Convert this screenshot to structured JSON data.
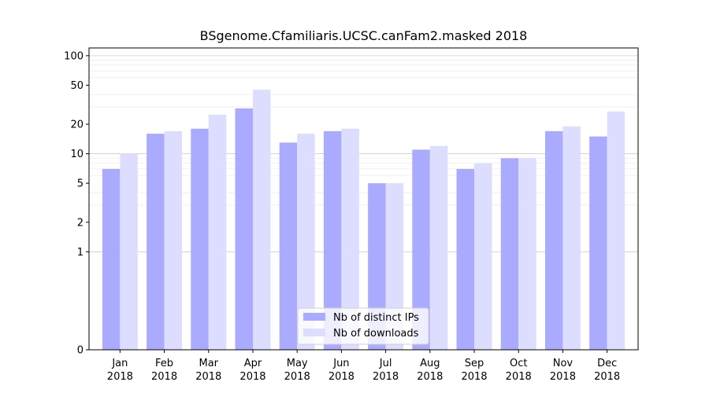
{
  "chart_data": {
    "type": "bar",
    "title": "BSgenome.Cfamiliaris.UCSC.canFam2.masked 2018",
    "xlabel": "",
    "ylabel": "",
    "y_scale": "symlog",
    "ylim": [
      0,
      120
    ],
    "yticks": [
      0,
      1,
      2,
      5,
      10,
      20,
      50,
      100
    ],
    "ytick_labels": [
      "0",
      "1",
      "2",
      "5",
      "10",
      "20",
      "50",
      "100"
    ],
    "grid": true,
    "legend_position": "lower-center",
    "categories": [
      "Jan\n2018",
      "Feb\n2018",
      "Mar\n2018",
      "Apr\n2018",
      "May\n2018",
      "Jun\n2018",
      "Jul\n2018",
      "Aug\n2018",
      "Sep\n2018",
      "Oct\n2018",
      "Nov\n2018",
      "Dec\n2018"
    ],
    "series": [
      {
        "name": "Nb of distinct IPs",
        "color": "#aaaaff",
        "values": [
          7,
          16,
          18,
          29,
          13,
          17,
          5,
          11,
          7,
          9,
          17,
          15
        ]
      },
      {
        "name": "Nb of downloads",
        "color": "#ddddff",
        "values": [
          10,
          17,
          25,
          45,
          16,
          18,
          5,
          12,
          8,
          9,
          19,
          27
        ]
      }
    ]
  }
}
